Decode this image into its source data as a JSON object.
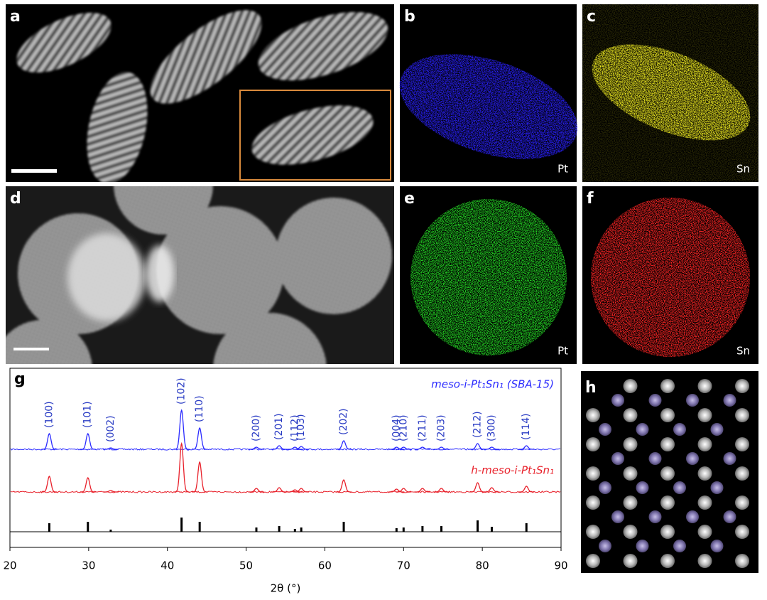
{
  "panel_labels": [
    "a",
    "b",
    "c",
    "d",
    "e",
    "f",
    "g",
    "h"
  ],
  "map_labels": [
    "Pt",
    "Sn",
    "Pt",
    "Sn"
  ],
  "chart_data": {
    "type": "xrd",
    "xlabel": "2θ (°)",
    "xlim": [
      20,
      90
    ],
    "xticks": [
      20,
      30,
      40,
      50,
      60,
      70,
      80,
      90
    ],
    "x": [
      25.0,
      29.9,
      32.8,
      41.8,
      44.1,
      51.3,
      54.2,
      56.2,
      57.0,
      62.4,
      69.1,
      70.0,
      72.4,
      74.8,
      79.4,
      81.2,
      85.6
    ],
    "peak_labels": [
      "(100)",
      "(101)",
      "(002)",
      "(102)",
      "(110)",
      "(200)",
      "(201)",
      "(112)",
      "(103)",
      "(202)",
      "(004)",
      "(210)",
      "(211)",
      "(203)",
      "(212)",
      "(300)",
      "(114)"
    ],
    "series": [
      {
        "name": "meso-i-Pt₁Sn₁ (SBA-15)",
        "color": "#2b2bff",
        "values": [
          22,
          22,
          2,
          55,
          30,
          3,
          5,
          3,
          4,
          12,
          3,
          3,
          3,
          3,
          8,
          3,
          5
        ]
      },
      {
        "name": "h-meso-i-Pt₁Sn₁",
        "color": "#e8202a",
        "values": [
          22,
          20,
          2,
          68,
          42,
          5,
          6,
          3,
          5,
          17,
          4,
          5,
          5,
          5,
          13,
          6,
          8
        ]
      }
    ],
    "reference": {
      "color": "#000000",
      "values": [
        12,
        14,
        3,
        20,
        14,
        6,
        8,
        4,
        6,
        14,
        5,
        6,
        8,
        8,
        16,
        7,
        12
      ]
    },
    "peak_label_color": "#2a3cc4"
  }
}
